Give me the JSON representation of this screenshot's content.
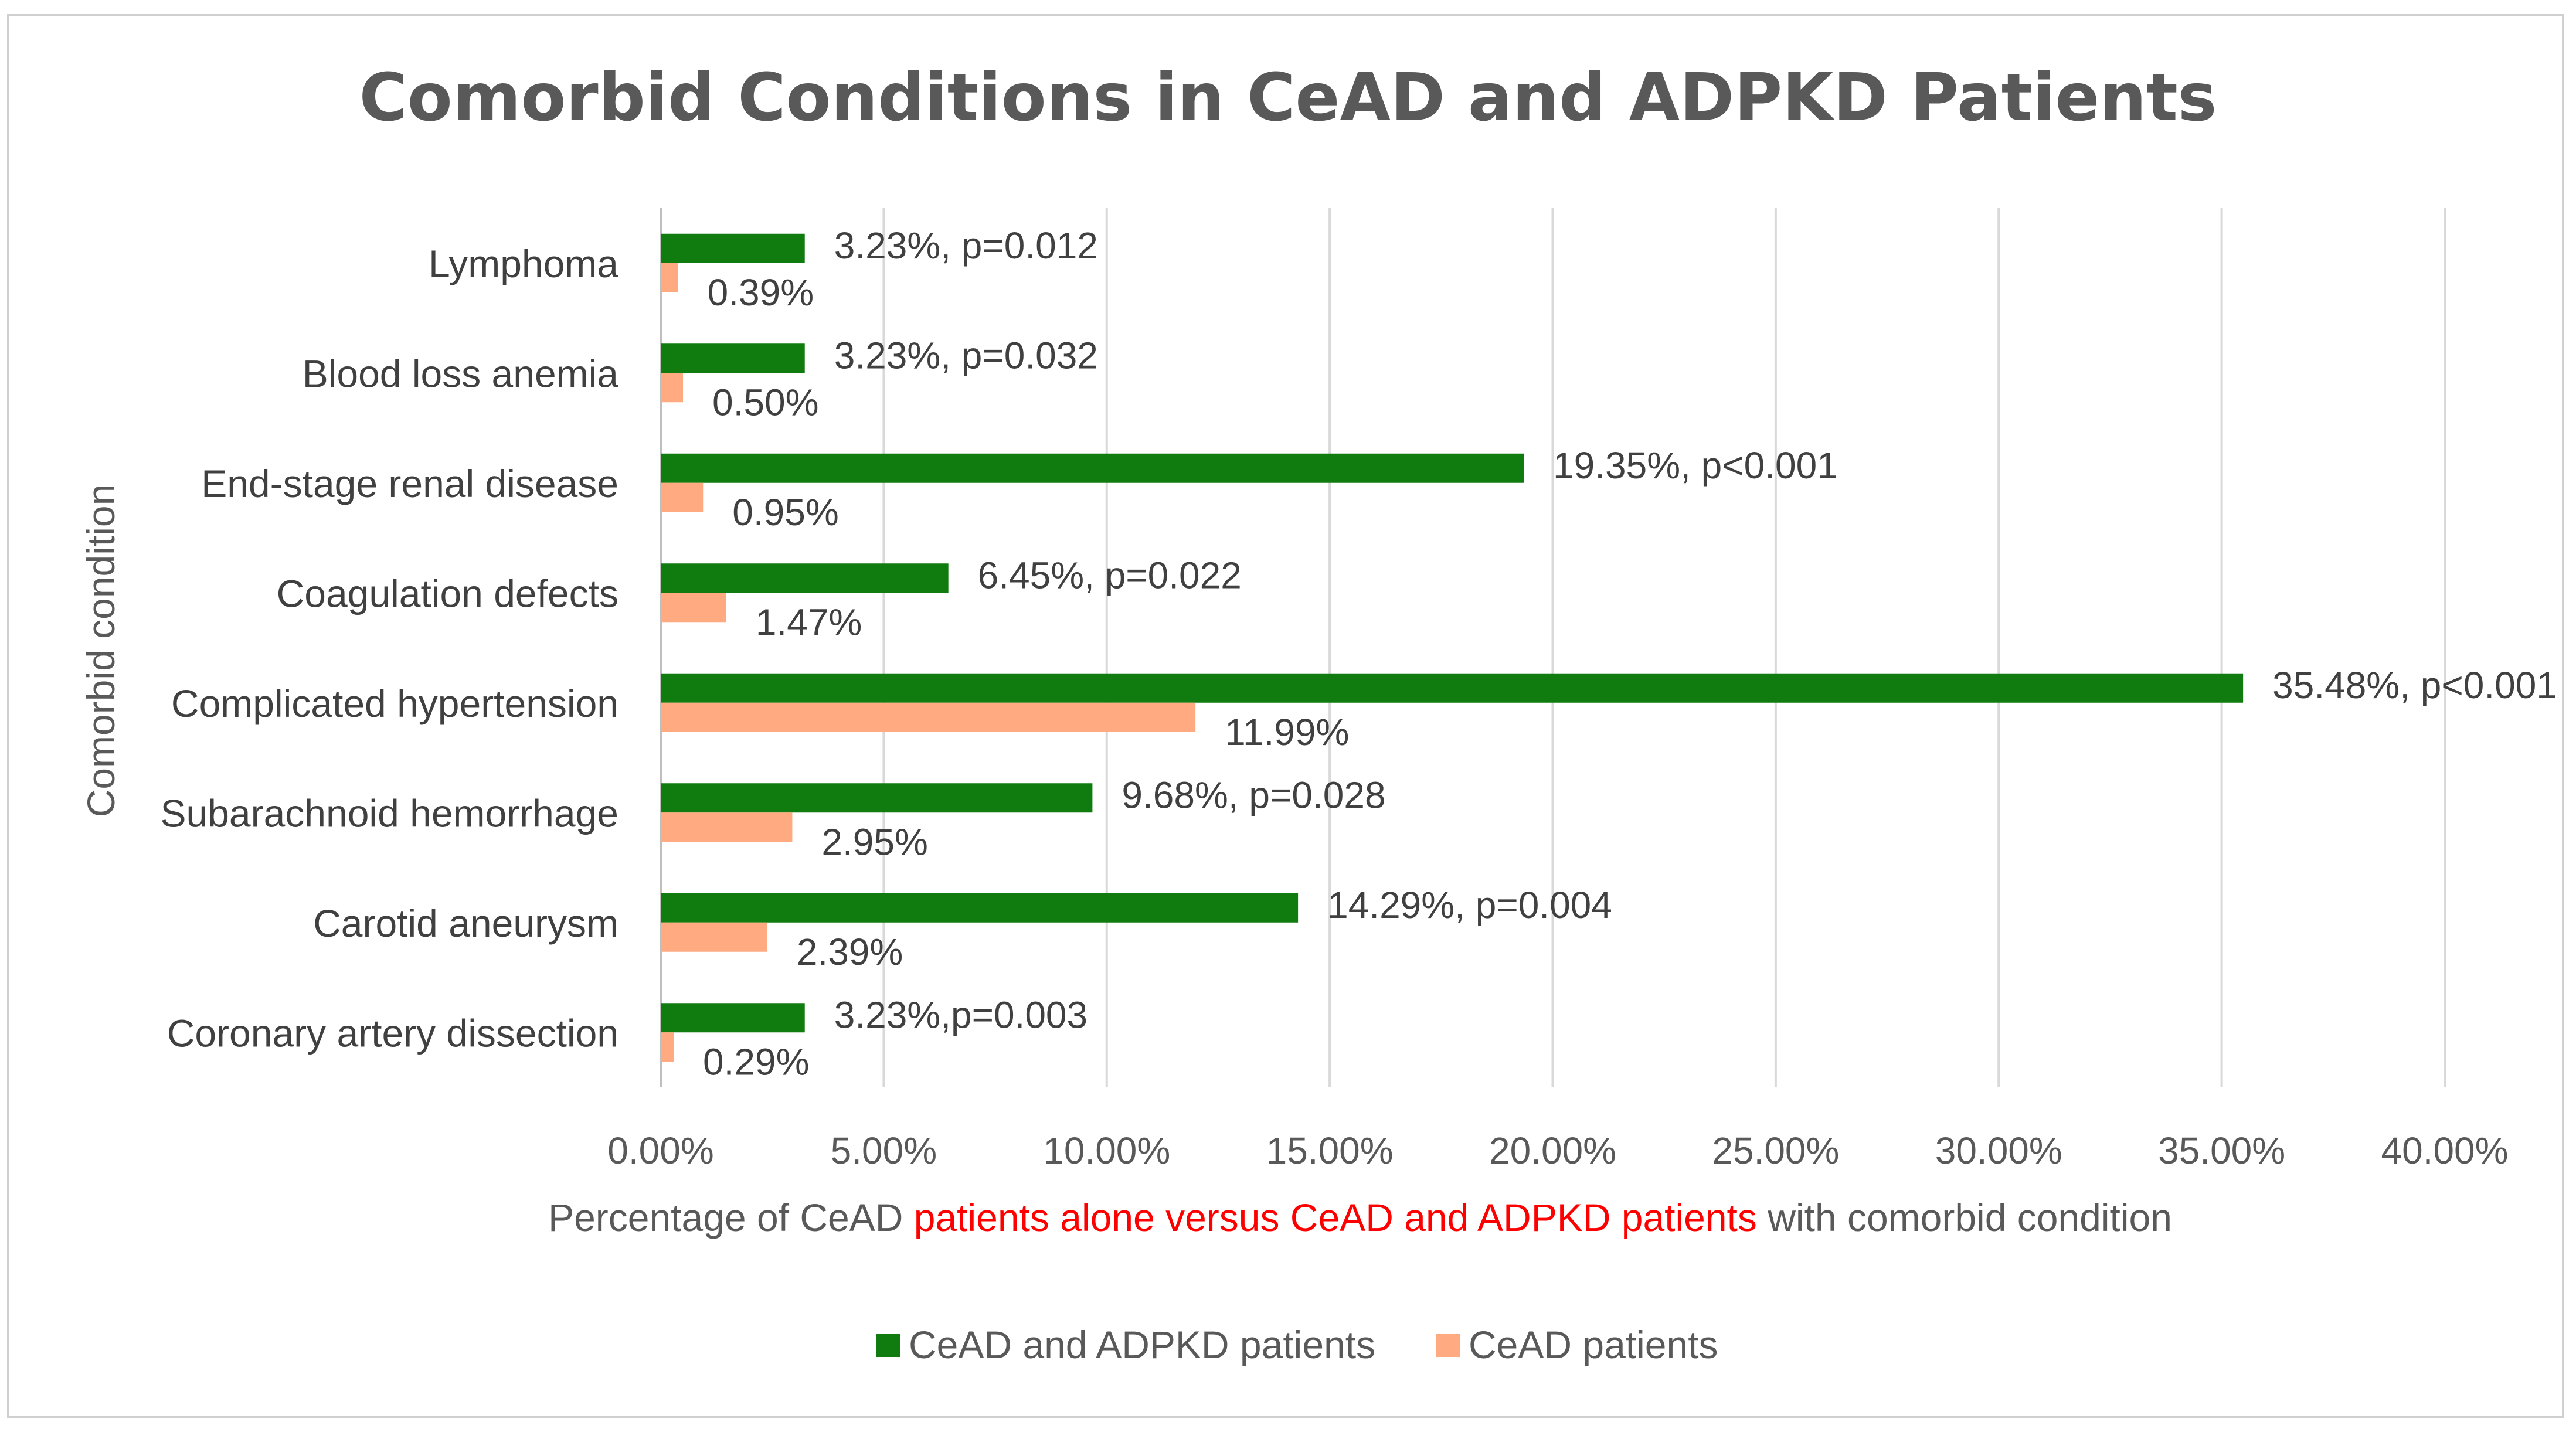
{
  "chart_data": {
    "type": "bar",
    "orientation": "horizontal",
    "title": "Comorbid Conditions in CeAD and ADPKD Patients",
    "ylabel": "Comorbid condition",
    "xlabel_parts": [
      {
        "text": "Percentage of CeAD ",
        "color": "#595959"
      },
      {
        "text": "patients alone versus CeAD and ADPKD patients",
        "color": "#ff0000"
      },
      {
        "text": " with comorbid condition",
        "color": "#595959"
      }
    ],
    "xlim": [
      0,
      40
    ],
    "x_ticks": [
      0,
      5,
      10,
      15,
      20,
      25,
      30,
      35,
      40
    ],
    "x_tick_labels": [
      "0.00%",
      "5.00%",
      "10.00%",
      "15.00%",
      "20.00%",
      "25.00%",
      "30.00%",
      "35.00%",
      "40.00%"
    ],
    "grid": true,
    "legend_position": "bottom",
    "categories": [
      "Lymphoma",
      "Blood loss anemia",
      "End-stage renal disease",
      "Coagulation defects",
      "Complicated hypertension",
      "Subarachnoid hemorrhage",
      "Carotid aneurysm",
      "Coronary artery dissection"
    ],
    "series": [
      {
        "name": "CeAD and ADPKD patients",
        "color": "#107c10",
        "values": [
          3.23,
          3.23,
          19.35,
          6.45,
          35.48,
          9.68,
          14.29,
          3.23
        ],
        "labels": [
          "3.23%, p=0.012",
          "3.23%, p=0.032",
          "19.35%, p<0.001",
          "6.45%, p=0.022",
          "35.48%, p<0.001",
          "9.68%, p=0.028",
          "14.29%, p=0.004",
          "3.23%,p=0.003"
        ]
      },
      {
        "name": "CeAD patients",
        "color": "#ffaa80",
        "values": [
          0.39,
          0.5,
          0.95,
          1.47,
          11.99,
          2.95,
          2.39,
          0.29
        ],
        "labels": [
          "0.39%",
          "0.50%",
          "0.95%",
          "1.47%",
          "11.99%",
          "2.95%",
          "2.39%",
          "0.29%"
        ]
      }
    ]
  }
}
